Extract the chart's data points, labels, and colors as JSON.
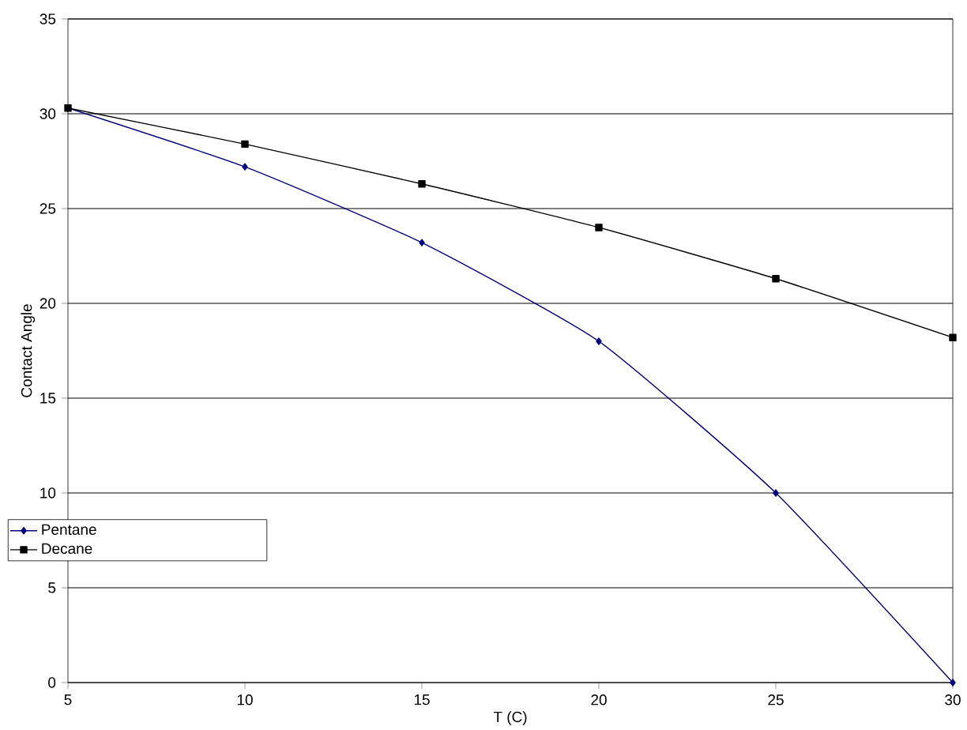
{
  "chart_data": {
    "type": "line",
    "xlabel": "T (C)",
    "ylabel": "Contact Angle",
    "x": [
      5,
      10,
      15,
      20,
      25,
      30
    ],
    "series": [
      {
        "name": "Pentane",
        "color": "#000080",
        "marker": "diamond",
        "values": [
          30.3,
          27.2,
          23.2,
          18,
          10,
          0
        ]
      },
      {
        "name": "Decane",
        "color": "#000000",
        "marker": "square",
        "values": [
          30.3,
          28.4,
          26.3,
          24,
          21.3,
          18.2
        ]
      }
    ],
    "xlim": [
      5,
      30
    ],
    "ylim": [
      0,
      35
    ],
    "xticks": [
      5,
      10,
      15,
      20,
      25,
      30
    ],
    "yticks": [
      0,
      5,
      10,
      15,
      20,
      25,
      30,
      35
    ],
    "grid": "y",
    "legend": "left",
    "line_style": "solid"
  }
}
